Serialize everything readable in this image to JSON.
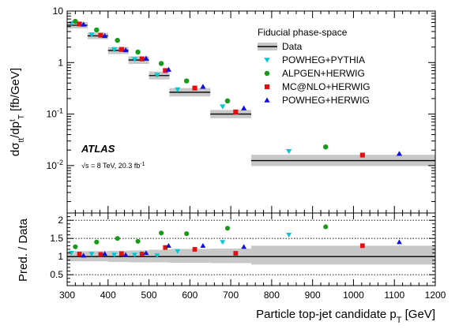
{
  "chart_data": [
    {
      "type": "scatter",
      "scale": "log",
      "ylim": [
        0.0012,
        10
      ],
      "xlim": [
        300,
        1200
      ],
      "ylabel": "dσ",
      "ylabel_sub1": "tt",
      "ylabel_mid": "/dp",
      "ylabel_sup": "t",
      "ylabel_sub2": "T",
      "ylabel_unit": " [fb/GeV]",
      "y_ticks": [
        {
          "v": 10,
          "text": "10",
          "sup": ""
        },
        {
          "v": 1,
          "text": "1",
          "sup": ""
        },
        {
          "v": 0.1,
          "text": "10",
          "sup": "-1"
        },
        {
          "v": 0.01,
          "text": "10",
          "sup": "-2"
        }
      ],
      "legend_title": "Fiducial phase-space",
      "experiment_label": "ATLAS",
      "energy_label": "√s = 8 TeV, 20.3 fb",
      "energy_sup": "-1",
      "bins": [
        {
          "lo": 300,
          "hi": 350,
          "data": 5.3,
          "unc_lo": 4.6,
          "unc_hi": 6.1
        },
        {
          "lo": 350,
          "hi": 400,
          "data": 3.3,
          "unc_lo": 2.85,
          "unc_hi": 3.8
        },
        {
          "lo": 400,
          "hi": 450,
          "data": 1.72,
          "unc_lo": 1.46,
          "unc_hi": 2.0
        },
        {
          "lo": 450,
          "hi": 500,
          "data": 1.12,
          "unc_lo": 0.94,
          "unc_hi": 1.32
        },
        {
          "lo": 500,
          "hi": 550,
          "data": 0.56,
          "unc_lo": 0.47,
          "unc_hi": 0.67
        },
        {
          "lo": 550,
          "hi": 650,
          "data": 0.265,
          "unc_lo": 0.22,
          "unc_hi": 0.32
        },
        {
          "lo": 650,
          "hi": 750,
          "data": 0.1,
          "unc_lo": 0.083,
          "unc_hi": 0.12
        },
        {
          "lo": 750,
          "hi": 1200,
          "data": 0.0125,
          "unc_lo": 0.0098,
          "unc_hi": 0.0162
        }
      ],
      "series": [
        {
          "name": "Data",
          "marker": "band",
          "color": "#000000",
          "band_color": "#c8c8c8"
        },
        {
          "name": "POWHEG+PYTHIA",
          "marker": "triangle-down",
          "color": "#00c8d2",
          "points": [
            [
              310,
              5.8
            ],
            [
              360,
              3.5
            ],
            [
              415,
              1.8
            ],
            [
              465,
              1.16
            ],
            [
              520,
              0.57
            ],
            [
              570,
              0.3
            ],
            [
              680,
              0.14
            ],
            [
              842,
              0.019
            ]
          ]
        },
        {
          "name": "ALPGEN+HERWIG",
          "marker": "circle",
          "color": "#1a9a1a",
          "points": [
            [
              320,
              6.3
            ],
            [
              372,
              4.3
            ],
            [
              423,
              2.7
            ],
            [
              473,
              1.6
            ],
            [
              530,
              0.96
            ],
            [
              592,
              0.44
            ],
            [
              692,
              0.18
            ],
            [
              932,
              0.023
            ]
          ]
        },
        {
          "name": "MC@NLO+HERWIG",
          "marker": "square",
          "color": "#e01010",
          "points": [
            [
              330,
              5.6
            ],
            [
              382,
              3.4
            ],
            [
              433,
              1.8
            ],
            [
              483,
              1.18
            ],
            [
              540,
              0.7
            ],
            [
              612,
              0.32
            ],
            [
              712,
              0.11
            ],
            [
              1022,
              0.016
            ]
          ]
        },
        {
          "name": "POWHEG+HERWIG",
          "marker": "triangle-up",
          "color": "#1010dd",
          "points": [
            [
              340,
              5.5
            ],
            [
              392,
              3.3
            ],
            [
              443,
              1.75
            ],
            [
              493,
              1.2
            ],
            [
              548,
              0.73
            ],
            [
              632,
              0.34
            ],
            [
              732,
              0.13
            ],
            [
              1112,
              0.017
            ]
          ]
        }
      ]
    },
    {
      "type": "scatter",
      "xlabel": "Particle top-jet candidate p",
      "xlabel_sub": "T",
      "xlabel_unit": " [GeV]",
      "ylabel": "Pred. / Data",
      "xlim": [
        300,
        1200
      ],
      "ylim": [
        0.2,
        2.2
      ],
      "x_ticks": [
        300,
        400,
        500,
        600,
        700,
        800,
        900,
        1000,
        1100,
        1200
      ],
      "y_ticks": [
        {
          "v": 0.5,
          "text": "0.5"
        },
        {
          "v": 1,
          "text": "1"
        },
        {
          "v": 1.5,
          "text": "1.5"
        },
        {
          "v": 2,
          "text": "2"
        }
      ],
      "ref_lines": [
        0.5,
        1.5,
        2
      ],
      "bands": [
        {
          "lo": 300,
          "hi": 350,
          "rlo": 0.87,
          "rhi": 1.15
        },
        {
          "lo": 350,
          "hi": 400,
          "rlo": 0.87,
          "rhi": 1.15
        },
        {
          "lo": 400,
          "hi": 450,
          "rlo": 0.85,
          "rhi": 1.16
        },
        {
          "lo": 450,
          "hi": 500,
          "rlo": 0.84,
          "rhi": 1.17
        },
        {
          "lo": 500,
          "hi": 550,
          "rlo": 0.84,
          "rhi": 1.19
        },
        {
          "lo": 550,
          "hi": 650,
          "rlo": 0.83,
          "rhi": 1.21
        },
        {
          "lo": 650,
          "hi": 750,
          "rlo": 0.82,
          "rhi": 1.22
        },
        {
          "lo": 750,
          "hi": 1200,
          "rlo": 0.78,
          "rhi": 1.3
        }
      ],
      "series": [
        {
          "name": "POWHEG+PYTHIA",
          "marker": "triangle-down",
          "color": "#00c8d2",
          "points": [
            [
              310,
              1.1
            ],
            [
              360,
              1.07
            ],
            [
              415,
              1.05
            ],
            [
              465,
              1.05
            ],
            [
              520,
              1.03
            ],
            [
              570,
              1.15
            ],
            [
              680,
              1.4
            ],
            [
              842,
              1.6
            ]
          ]
        },
        {
          "name": "ALPGEN+HERWIG",
          "marker": "circle",
          "color": "#1a9a1a",
          "points": [
            [
              320,
              1.27
            ],
            [
              372,
              1.4
            ],
            [
              423,
              1.5
            ],
            [
              473,
              1.42
            ],
            [
              530,
              1.65
            ],
            [
              592,
              1.63
            ],
            [
              692,
              1.78
            ],
            [
              932,
              1.82
            ]
          ]
        },
        {
          "name": "MC@NLO+HERWIG",
          "marker": "square",
          "color": "#e01010",
          "points": [
            [
              330,
              1.07
            ],
            [
              382,
              1.06
            ],
            [
              433,
              1.08
            ],
            [
              483,
              1.07
            ],
            [
              540,
              1.25
            ],
            [
              612,
              1.2
            ],
            [
              712,
              1.09
            ],
            [
              1022,
              1.3
            ]
          ]
        },
        {
          "name": "POWHEG+HERWIG",
          "marker": "triangle-up",
          "color": "#1010dd",
          "points": [
            [
              340,
              1.03
            ],
            [
              392,
              1.08
            ],
            [
              443,
              1.05
            ],
            [
              493,
              1.1
            ],
            [
              548,
              1.3
            ],
            [
              632,
              1.3
            ],
            [
              732,
              1.27
            ],
            [
              1112,
              1.4
            ]
          ]
        }
      ]
    }
  ]
}
